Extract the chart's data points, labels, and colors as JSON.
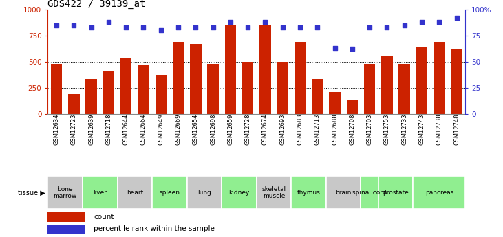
{
  "title": "GDS422 / 39139_at",
  "samples": [
    "GSM12634",
    "GSM12723",
    "GSM12639",
    "GSM12718",
    "GSM12644",
    "GSM12664",
    "GSM12649",
    "GSM12669",
    "GSM12654",
    "GSM12698",
    "GSM12659",
    "GSM12728",
    "GSM12674",
    "GSM12693",
    "GSM12683",
    "GSM12713",
    "GSM12688",
    "GSM12708",
    "GSM12703",
    "GSM12753",
    "GSM12733",
    "GSM12743",
    "GSM12738",
    "GSM12748"
  ],
  "counts": [
    480,
    190,
    335,
    415,
    540,
    470,
    370,
    690,
    670,
    480,
    850,
    500,
    850,
    500,
    690,
    335,
    210,
    130,
    480,
    555,
    480,
    635,
    690,
    625
  ],
  "percentiles": [
    85,
    85,
    83,
    88,
    83,
    83,
    80,
    83,
    83,
    83,
    88,
    83,
    88,
    83,
    83,
    83,
    63,
    62,
    83,
    83,
    85,
    88,
    88,
    92
  ],
  "tissues": [
    {
      "label": "bone\nmarrow",
      "start": 0,
      "end": 2,
      "color": "#c8c8c8"
    },
    {
      "label": "liver",
      "start": 2,
      "end": 4,
      "color": "#90ee90"
    },
    {
      "label": "heart",
      "start": 4,
      "end": 6,
      "color": "#c8c8c8"
    },
    {
      "label": "spleen",
      "start": 6,
      "end": 8,
      "color": "#90ee90"
    },
    {
      "label": "lung",
      "start": 8,
      "end": 10,
      "color": "#c8c8c8"
    },
    {
      "label": "kidney",
      "start": 10,
      "end": 12,
      "color": "#90ee90"
    },
    {
      "label": "skeletal\nmuscle",
      "start": 12,
      "end": 14,
      "color": "#c8c8c8"
    },
    {
      "label": "thymus",
      "start": 14,
      "end": 16,
      "color": "#90ee90"
    },
    {
      "label": "brain",
      "start": 16,
      "end": 18,
      "color": "#c8c8c8"
    },
    {
      "label": "spinal cord",
      "start": 18,
      "end": 19,
      "color": "#90ee90"
    },
    {
      "label": "prostate",
      "start": 19,
      "end": 21,
      "color": "#90ee90"
    },
    {
      "label": "pancreas",
      "start": 21,
      "end": 24,
      "color": "#90ee90"
    }
  ],
  "bar_color": "#cc2200",
  "dot_color": "#3333cc",
  "ylim_left": [
    0,
    1000
  ],
  "ylim_right": [
    0,
    100
  ],
  "yticks_left": [
    0,
    250,
    500,
    750,
    1000
  ],
  "yticks_right": [
    0,
    25,
    50,
    75,
    100
  ],
  "grid_lines": [
    250,
    500,
    750
  ],
  "label_fontsize": 6.5,
  "tick_fontsize": 6.0,
  "title_fontsize": 10,
  "legend_fontsize": 7.5
}
